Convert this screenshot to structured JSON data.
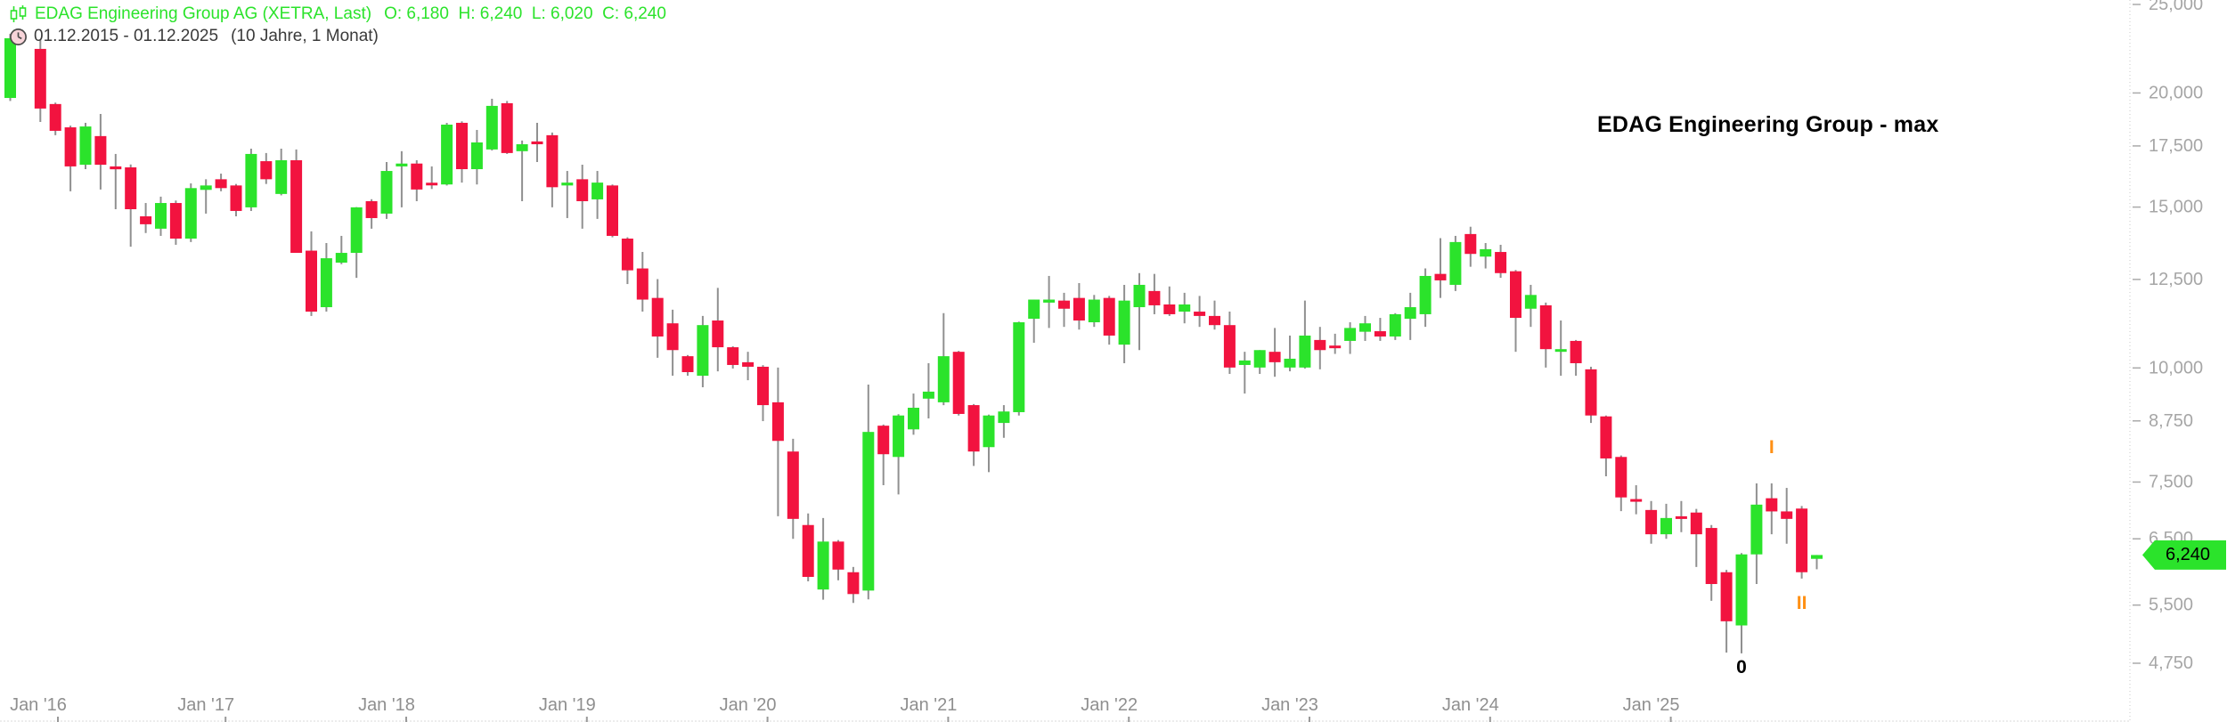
{
  "header": {
    "instrument": "EDAG Engineering Group AG (XETRA, Last)",
    "ohlc": "O: 6,180  H: 6,240  L: 6,020  C: 6,240",
    "range": "01.12.2015 - 01.12.2025",
    "duration": "(10 Jahre, 1 Monat)"
  },
  "chart_title": "EDAG Engineering Group - max",
  "price_badge": "6,240",
  "colors": {
    "up": "#2be32b",
    "down": "#f2133f",
    "wick": "#909090",
    "orange": "#ff9014",
    "y_label": "#a6a6a6",
    "x_label": "#8f8f8f",
    "axis_line": "#c8c8c8"
  },
  "chart_data": {
    "type": "candlestick",
    "instrument": "EDAG Engineering Group AG (XETRA, Last)",
    "interval": "monthly",
    "start_month": "2015-12",
    "end_month": "2025-12",
    "y_scale": "logarithmic",
    "grid": "off",
    "last_price": 6240,
    "y_axis_ticks": [
      25000,
      20000,
      17500,
      15000,
      12500,
      10000,
      8750,
      7500,
      6500,
      5500,
      4750
    ],
    "x_axis_labels": [
      {
        "label": "Jan '16",
        "index": 1
      },
      {
        "label": "Jan '17",
        "index": 13
      },
      {
        "label": "Jan '18",
        "index": 25
      },
      {
        "label": "Jan '19",
        "index": 37
      },
      {
        "label": "Jan '20",
        "index": 49
      },
      {
        "label": "Jan '21",
        "index": 61
      },
      {
        "label": "Jan '22",
        "index": 73
      },
      {
        "label": "Jan '23",
        "index": 85
      },
      {
        "label": "Jan '24",
        "index": 97
      },
      {
        "label": "Jan '25",
        "index": 109
      }
    ],
    "annotations": [
      {
        "label": "0",
        "index": 115,
        "price": 4700,
        "color_key": "black"
      },
      {
        "label": "I",
        "index": 117,
        "price": 8190,
        "color_key": "orange"
      },
      {
        "label": "II",
        "index": 119,
        "price": 5530,
        "color_key": "orange"
      }
    ],
    "candles_format": [
      "open",
      "high",
      "low",
      "close"
    ],
    "candles": [
      [
        19750,
        23220,
        19600,
        22960
      ],
      null,
      [
        22350,
        22900,
        18590,
        19230
      ],
      [
        19450,
        19520,
        17980,
        18180
      ],
      [
        18340,
        18420,
        15610,
        16620
      ],
      [
        16690,
        18550,
        16505,
        18380
      ],
      [
        17940,
        18970,
        15680,
        16690
      ],
      [
        16620,
        17150,
        14920,
        16500
      ],
      [
        16580,
        16700,
        13575,
        14920
      ],
      [
        14655,
        15155,
        14050,
        14365
      ],
      [
        14205,
        15400,
        13950,
        15155
      ],
      [
        15155,
        15250,
        13640,
        13855
      ],
      [
        13855,
        15925,
        13735,
        15735
      ],
      [
        15665,
        16090,
        14755,
        15840
      ],
      [
        16090,
        16320,
        15610,
        15735
      ],
      [
        15840,
        15900,
        14655,
        14855
      ],
      [
        14990,
        17380,
        14855,
        17150
      ],
      [
        16840,
        17190,
        15900,
        16090
      ],
      [
        15505,
        17380,
        15450,
        16880
      ],
      [
        16880,
        17345,
        13365,
        13365
      ],
      [
        13440,
        14110,
        11400,
        11525
      ],
      [
        11655,
        13700,
        11525,
        13185
      ],
      [
        13040,
        13950,
        12990,
        13365
      ],
      [
        13365,
        15000,
        12550,
        14990
      ],
      [
        15225,
        15300,
        14205,
        14590
      ],
      [
        14755,
        16805,
        14560,
        16430
      ],
      [
        16620,
        17270,
        14990,
        16740
      ],
      [
        16740,
        16880,
        15225,
        15680
      ],
      [
        15950,
        16620,
        15700,
        15880
      ],
      [
        15880,
        18550,
        15840,
        18465
      ],
      [
        18550,
        18620,
        15955,
        16505
      ],
      [
        16505,
        18220,
        15880,
        17655
      ],
      [
        17345,
        19710,
        17300,
        19360
      ],
      [
        19490,
        19600,
        17150,
        17190
      ],
      [
        17270,
        17740,
        15225,
        17575
      ],
      [
        17700,
        18550,
        16805,
        17575
      ],
      [
        17980,
        18100,
        14990,
        15770
      ],
      [
        15840,
        16430,
        14590,
        15955
      ],
      [
        16090,
        16690,
        14205,
        15225
      ],
      [
        15295,
        16430,
        14560,
        15955
      ],
      [
        15840,
        15880,
        13900,
        13950
      ],
      [
        13855,
        13900,
        12355,
        12790
      ],
      [
        12850,
        13395,
        11525,
        11880
      ],
      [
        11930,
        12510,
        10260,
        10825
      ],
      [
        11190,
        11580,
        9805,
        10460
      ],
      [
        10300,
        10330,
        9805,
        9895
      ],
      [
        9805,
        11400,
        9525,
        11140
      ],
      [
        11270,
        12235,
        9915,
        10535
      ],
      [
        10535,
        10560,
        9985,
        10075
      ],
      [
        10145,
        10415,
        9695,
        10030
      ],
      [
        10030,
        10070,
        8745,
        9105
      ],
      [
        9170,
        10010,
        6880,
        8320
      ],
      [
        8100,
        8365,
        6500,
        6835
      ],
      [
        6730,
        6930,
        5840,
        5905
      ],
      [
        5720,
        6850,
        5575,
        6455
      ],
      [
        6455,
        6480,
        5855,
        6015
      ],
      [
        5975,
        6055,
        5530,
        5655
      ],
      [
        5705,
        9590,
        5580,
        8510
      ],
      [
        8645,
        8670,
        7440,
        8045
      ],
      [
        7990,
        8900,
        7270,
        8870
      ],
      [
        8565,
        9375,
        8450,
        9045
      ],
      [
        9255,
        10120,
        8805,
        9420
      ],
      [
        9170,
        11480,
        9105,
        10300
      ],
      [
        10415,
        10440,
        8870,
        8905
      ],
      [
        9105,
        9130,
        7810,
        8100
      ],
      [
        8190,
        8890,
        7690,
        8870
      ],
      [
        8705,
        9105,
        8385,
        8960
      ],
      [
        8945,
        11240,
        8870,
        11220
      ],
      [
        11320,
        11880,
        10655,
        11880
      ],
      [
        11790,
        12610,
        11060,
        11880
      ],
      [
        11850,
        12085,
        11090,
        11610
      ],
      [
        11930,
        12385,
        11015,
        11270
      ],
      [
        11220,
        12020,
        11090,
        11880
      ],
      [
        11930,
        11990,
        10605,
        10850
      ],
      [
        10605,
        12330,
        10120,
        11850
      ],
      [
        11655,
        12700,
        10460,
        12330
      ],
      [
        12140,
        12675,
        11450,
        11710
      ],
      [
        11735,
        12280,
        11400,
        11450
      ],
      [
        11525,
        12085,
        11190,
        11735
      ],
      [
        11525,
        11990,
        11090,
        11400
      ],
      [
        11400,
        11850,
        11015,
        11140
      ],
      [
        11140,
        11525,
        9850,
        10010
      ],
      [
        10075,
        10415,
        9375,
        10190
      ],
      [
        10010,
        10460,
        9850,
        10460
      ],
      [
        10415,
        11060,
        9780,
        10145
      ],
      [
        10010,
        10850,
        9915,
        10235
      ],
      [
        10010,
        11850,
        9985,
        10850
      ],
      [
        10730,
        11090,
        9965,
        10460
      ],
      [
        10580,
        10900,
        10360,
        10510
      ],
      [
        10705,
        11220,
        10360,
        11060
      ],
      [
        10955,
        11400,
        10705,
        11190
      ],
      [
        10970,
        11345,
        10705,
        10825
      ],
      [
        10825,
        11480,
        10730,
        11450
      ],
      [
        11320,
        12085,
        10730,
        11655
      ],
      [
        11450,
        12850,
        11090,
        12610
      ],
      [
        12675,
        13870,
        11930,
        12470
      ],
      [
        12330,
        13950,
        12140,
        13735
      ],
      [
        14015,
        14275,
        12905,
        13330
      ],
      [
        13240,
        13700,
        12850,
        13490
      ],
      [
        13395,
        13640,
        12550,
        12700
      ],
      [
        12760,
        12800,
        10415,
        11345
      ],
      [
        11610,
        12330,
        11090,
        12020
      ],
      [
        11710,
        11790,
        10010,
        10485
      ],
      [
        10415,
        11270,
        9805,
        10485
      ],
      [
        10705,
        10730,
        9805,
        10120
      ],
      [
        9965,
        10030,
        8705,
        8870
      ],
      [
        8850,
        8870,
        7610,
        7960
      ],
      [
        7990,
        8020,
        6970,
        7215
      ],
      [
        7185,
        7440,
        6915,
        7150
      ],
      [
        6990,
        7150,
        6420,
        6575
      ],
      [
        6575,
        7100,
        6500,
        6850
      ],
      [
        6880,
        7150,
        6610,
        6835
      ],
      [
        6945,
        7010,
        6055,
        6575
      ],
      [
        6680,
        6730,
        5560,
        5800
      ],
      [
        5975,
        6010,
        4880,
        5280
      ],
      [
        5225,
        6270,
        4870,
        6250
      ],
      [
        6250,
        7475,
        5800,
        7085
      ],
      [
        7200,
        7475,
        6575,
        6965
      ],
      [
        6965,
        7390,
        6420,
        6835
      ],
      [
        7015,
        7060,
        5880,
        5975
      ],
      [
        6180,
        6240,
        6020,
        6240
      ]
    ]
  }
}
